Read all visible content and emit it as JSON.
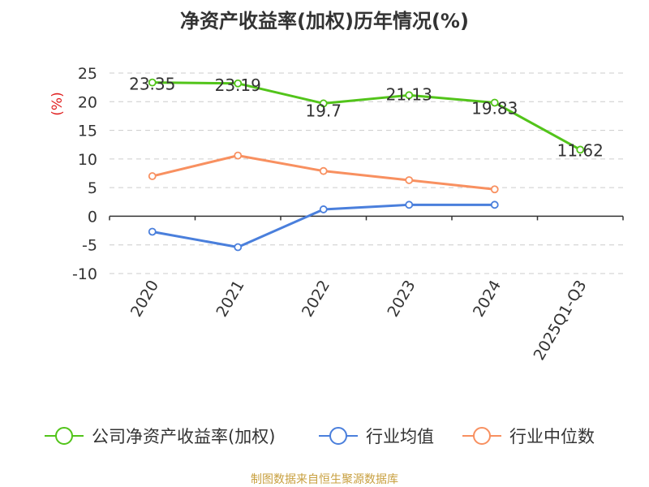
{
  "chart_data": {
    "type": "line",
    "title": "净资产收益率(加权)历年情况(%)",
    "ylabel": "(%)",
    "xlabel": "",
    "categories": [
      "2020",
      "2021",
      "2022",
      "2023",
      "2024",
      "2025Q1-Q3"
    ],
    "ylim": [
      -10,
      25
    ],
    "yticks": [
      25,
      20,
      15,
      10,
      5,
      0,
      -5,
      -10
    ],
    "series": [
      {
        "name": "公司净资产收益率(加权)",
        "color": "#52c41a",
        "values": [
          23.35,
          23.19,
          19.7,
          21.13,
          19.83,
          11.62
        ],
        "labels": [
          "23.35",
          "23.19",
          "19.7",
          "21.13",
          "19.83",
          "11.62"
        ]
      },
      {
        "name": "行业均值",
        "color": "#4a7fdc",
        "values": [
          -2.7,
          -5.4,
          1.2,
          2.0,
          2.0,
          null
        ]
      },
      {
        "name": "行业中位数",
        "color": "#f89060",
        "values": [
          7.0,
          10.6,
          7.9,
          6.3,
          4.7,
          null
        ]
      }
    ],
    "grid": true,
    "legend_position": "bottom"
  },
  "source": "制图数据来自恒生聚源数据库"
}
